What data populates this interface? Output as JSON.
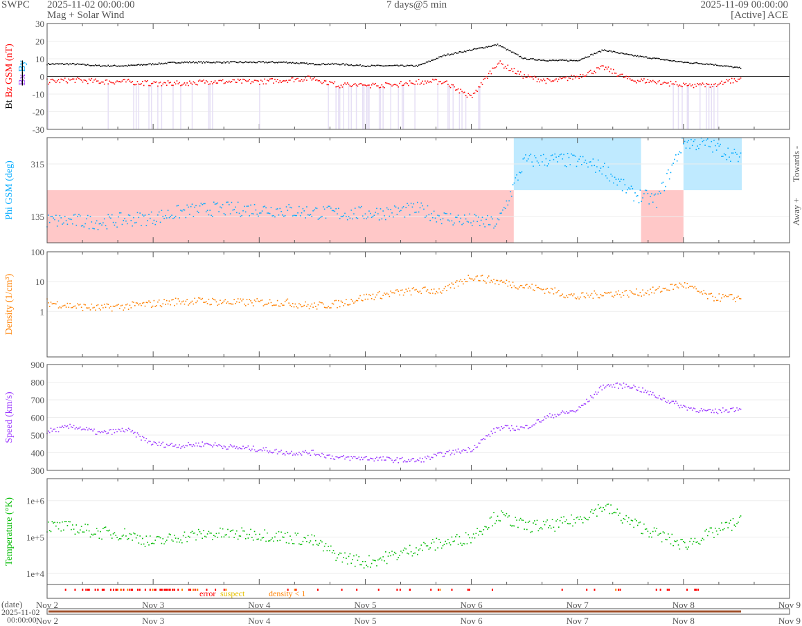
{
  "header": {
    "org": "SWPC",
    "start": "2025-11-02 00:00:00",
    "product": "Mag + Solar Wind",
    "span": "7 days@5 min",
    "end": "2025-11-09 00:00:00",
    "source": "[Active] ACE"
  },
  "colors": {
    "bt": "#000000",
    "bz": "#ff0000",
    "bx": "#9933ff",
    "by": "#00aaff",
    "phi": "#00aaff",
    "density": "#ff8000",
    "speed": "#9933ff",
    "temp": "#00bb00",
    "away": "#ffc8c8",
    "towards": "#bfeaff",
    "south": "#e6dff5"
  },
  "chart_data": {
    "type": "scatter",
    "x_units": "days since 2025-11-02 00:00",
    "x": [
      0,
      0.25,
      0.5,
      0.75,
      1,
      1.25,
      1.5,
      1.75,
      2,
      2.25,
      2.5,
      2.75,
      3,
      3.25,
      3.5,
      3.75,
      4,
      4.25,
      4.5,
      4.75,
      5,
      5.25,
      5.5,
      5.75,
      6,
      6.25,
      6.5
    ],
    "x_ticks": [
      "Nov 2",
      "Nov 3",
      "Nov 4",
      "Nov 5",
      "Nov 6",
      "Nov 7",
      "Nov 8",
      "Nov 9"
    ],
    "xlim": [
      0,
      7
    ],
    "panels": [
      {
        "name": "mag",
        "ylabel_parts": [
          "Bt",
          "Bz GSM (nT)",
          "Bx",
          "By"
        ],
        "ylim": [
          -30,
          30
        ],
        "ticks": [
          "30",
          "20",
          "10",
          "0",
          "-10",
          "-20",
          "-30"
        ],
        "series": [
          {
            "name": "Bt",
            "values": [
              7,
              7,
              6,
              6,
              7,
              8,
              8,
              8,
              8,
              8,
              7,
              7,
              6,
              6,
              6,
              12,
              15,
              18,
              10,
              9,
              9,
              15,
              12,
              10,
              8,
              7,
              5
            ]
          },
          {
            "name": "Bz",
            "values": [
              -3,
              -2,
              -3,
              -3,
              -4,
              -4,
              -3,
              -3,
              -3,
              -2,
              -1,
              -5,
              -5,
              -5,
              -3,
              -3,
              -12,
              8,
              0,
              -3,
              0,
              5,
              -2,
              -3,
              -5,
              -5,
              -2
            ]
          }
        ]
      },
      {
        "name": "phi",
        "ylabel": "Phi GSM (deg)",
        "ylim": [
          45,
          405
        ],
        "ticks": [
          "315",
          "135"
        ],
        "right_labels": [
          "Towards -",
          "Away +"
        ],
        "series": [
          {
            "name": "Phi",
            "values": [
              120,
              120,
              115,
              125,
              130,
              150,
              160,
              160,
              160,
              155,
              150,
              145,
              145,
              150,
              160,
              130,
              120,
              110,
              325,
              330,
              325,
              300,
              215,
              190,
              390,
              380,
              340
            ]
          }
        ],
        "sectors": [
          {
            "from": 0,
            "to": 4.4,
            "side": "away"
          },
          {
            "from": 4.4,
            "to": 5.6,
            "side": "towards"
          },
          {
            "from": 5.6,
            "to": 6.0,
            "side": "away"
          },
          {
            "from": 6.0,
            "to": 6.55,
            "side": "towards"
          }
        ]
      },
      {
        "name": "density",
        "ylabel": "Density (1/cm³)",
        "scale": "log",
        "ylim": [
          0.03,
          100
        ],
        "ticks": [
          "100",
          "10",
          "1"
        ],
        "series": [
          {
            "name": "Density",
            "values": [
              2,
              1.5,
              1.3,
              1.5,
              1.8,
              2.2,
              2.2,
              2,
              2,
              2,
              1.5,
              1.8,
              3,
              4,
              5,
              5,
              15,
              10,
              7,
              5,
              3,
              4,
              4,
              5,
              8,
              3,
              2.8
            ]
          }
        ]
      },
      {
        "name": "speed",
        "ylabel": "Speed (km/s)",
        "ylim": [
          300,
          900
        ],
        "ticks": [
          "900",
          "800",
          "700",
          "600",
          "500",
          "400",
          "300"
        ],
        "series": [
          {
            "name": "Speed",
            "values": [
              520,
              550,
              510,
              530,
              450,
              440,
              450,
              430,
              420,
              400,
              400,
              370,
              370,
              360,
              355,
              395,
              420,
              540,
              540,
              610,
              640,
              780,
              780,
              720,
              660,
              630,
              650
            ]
          }
        ]
      },
      {
        "name": "temp",
        "ylabel": "Temperature (°K)",
        "scale": "log",
        "ylim": [
          5000,
          4000000
        ],
        "ticks": [
          "1e+6",
          "1e+5",
          "1e+4"
        ],
        "series": [
          {
            "name": "Temperature",
            "values": [
              200000,
              180000,
              130000,
              120000,
              70000,
              100000,
              120000,
              120000,
              120000,
              100000,
              80000,
              30000,
              20000,
              30000,
              50000,
              70000,
              100000,
              400000,
              200000,
              200000,
              300000,
              700000,
              250000,
              120000,
              60000,
              120000,
              250000
            ]
          }
        ]
      }
    ],
    "flags_legend": [
      "error",
      "suspect",
      "density < 1"
    ],
    "date_axis": {
      "label": "(date)",
      "date": "2025-11-02",
      "time": "00:00:00"
    }
  }
}
